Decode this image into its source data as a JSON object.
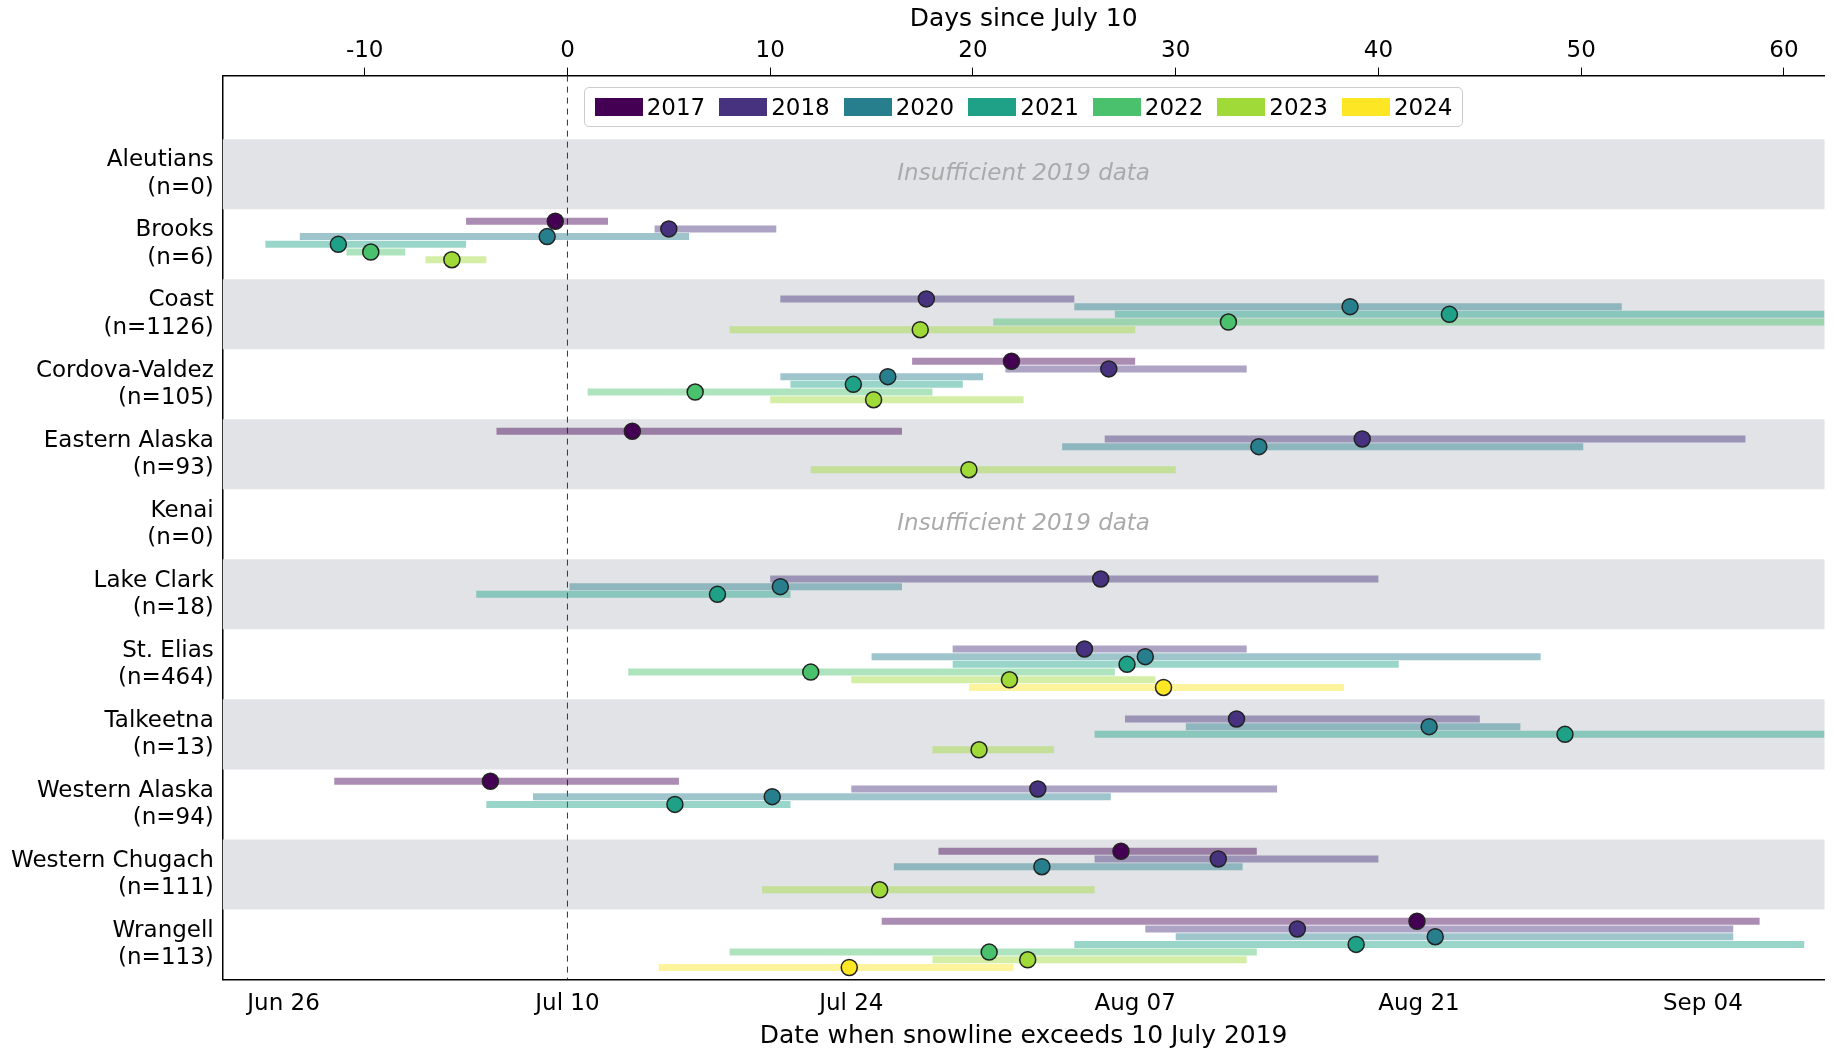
{
  "chart_data": {
    "type": "scatter",
    "orientation": "horizontal",
    "marker": "circle",
    "legend": "top",
    "grid": false,
    "xlabel": "Date when snowline exceeds 10 July 2019",
    "x2label": "Days since July 10",
    "categories": [
      "Aleutians\n(n=0)",
      "Brooks\n(n=6)",
      "Coast\n(n=1126)",
      "Cordova-Valdez\n(n=105)",
      "Eastern Alaska\n(n=93)",
      "Kenai\n(n=0)",
      "Lake Clark\n(n=18)",
      "St. Elias\n(n=464)",
      "Talkeetna\n(n=13)",
      "Western Alaska\n(n=94)",
      "Western Chugach\n(n=111)",
      "Wrangell\n(n=113)"
    ],
    "xlim": [
      "--06-23",
      "--09-10"
    ],
    "xticks": [
      {
        "value": "--06-26",
        "label": "Jun 26"
      },
      {
        "value": "--07-10",
        "label": "Jul 10"
      },
      {
        "value": "--07-24",
        "label": "Jul 24"
      },
      {
        "value": "--08-07",
        "label": "Aug 07"
      },
      {
        "value": "--08-21",
        "label": "Aug 21"
      },
      {
        "value": "--09-04",
        "label": "Sep 04"
      }
    ],
    "x2lim": [
      -17,
      62
    ],
    "x2ticks": [
      -10,
      0,
      10,
      20,
      30,
      40,
      50,
      60
    ],
    "ref_lines": [
      {
        "axis": "x2",
        "value": 0,
        "color": "#333333",
        "line_style": "dashed"
      }
    ],
    "annotations": [
      "Insufficient 2019 data",
      "Insufficient 2019 data"
    ],
    "series": [
      {
        "name": "2017",
        "axis": "x2",
        "color": "#440154",
        "values": [
          null,
          -0.6,
          null,
          21.9,
          3.2,
          null,
          null,
          null,
          null,
          -3.8,
          27.3,
          41.9
        ],
        "errors": [
          null,
          [
            -5,
            2
          ],
          null,
          [
            17,
            28
          ],
          [
            -3.5,
            16.5
          ],
          null,
          null,
          null,
          null,
          [
            -11.5,
            5.5
          ],
          [
            18.3,
            34
          ],
          [
            15.5,
            58.8
          ]
        ]
      },
      {
        "name": "2018",
        "axis": "x2",
        "color": "#46327e",
        "values": [
          null,
          5,
          17.7,
          26.7,
          39.2,
          null,
          26.3,
          25.5,
          33,
          23.2,
          32.1,
          36
        ],
        "errors": [
          null,
          [
            4.3,
            10.3
          ],
          [
            10.5,
            25
          ],
          [
            21.6,
            33.5
          ],
          [
            26.5,
            58.1
          ],
          null,
          [
            10,
            40
          ],
          [
            19,
            33.5
          ],
          [
            27.5,
            45
          ],
          [
            14,
            35
          ],
          [
            26,
            40
          ],
          [
            28.5,
            57.5
          ]
        ]
      },
      {
        "name": "2020",
        "axis": "x2",
        "color": "#277f8e",
        "values": [
          null,
          -1,
          38.6,
          15.8,
          34.1,
          null,
          10.5,
          28.5,
          42.5,
          10.1,
          23.4,
          42.8
        ],
        "errors": [
          null,
          [
            -13.2,
            6
          ],
          [
            25,
            52
          ],
          [
            10.5,
            20.5
          ],
          [
            24.4,
            50.1
          ],
          null,
          [
            0.1,
            16.5
          ],
          [
            15,
            48
          ],
          [
            30.5,
            47
          ],
          [
            -1.7,
            26.8
          ],
          [
            16.1,
            33.3
          ],
          [
            30,
            57.5
          ]
        ]
      },
      {
        "name": "2021",
        "axis": "x2",
        "color": "#1fa187",
        "values": [
          null,
          -11.3,
          43.5,
          14.1,
          null,
          null,
          7.4,
          27.6,
          49.2,
          5.3,
          null,
          38.9
        ],
        "errors": [
          null,
          [
            -14.9,
            -5
          ],
          [
            27,
            62
          ],
          [
            11,
            19.5
          ],
          null,
          null,
          [
            -4.5,
            11
          ],
          [
            19,
            41
          ],
          [
            26,
            62
          ],
          [
            -4,
            11
          ],
          null,
          [
            25,
            61
          ]
        ]
      },
      {
        "name": "2022",
        "axis": "x2",
        "color": "#4ac16d",
        "values": [
          null,
          -9.7,
          32.6,
          6.3,
          null,
          null,
          null,
          12,
          null,
          null,
          null,
          20.8
        ],
        "errors": [
          null,
          [
            -10.9,
            -8
          ],
          [
            21,
            62
          ],
          [
            1,
            18
          ],
          null,
          null,
          null,
          [
            3,
            27
          ],
          null,
          null,
          null,
          [
            8,
            34
          ]
        ]
      },
      {
        "name": "2023",
        "axis": "x2",
        "color": "#a0da39",
        "values": [
          null,
          -5.7,
          17.4,
          15.1,
          19.8,
          null,
          null,
          21.8,
          20.3,
          null,
          15.4,
          22.7
        ],
        "errors": [
          null,
          [
            -7,
            -4
          ],
          [
            8,
            28
          ],
          [
            10,
            22.5
          ],
          [
            12,
            30
          ],
          null,
          null,
          [
            14,
            29
          ],
          [
            18,
            24
          ],
          null,
          [
            9.6,
            26
          ],
          [
            18,
            33.5
          ]
        ]
      },
      {
        "name": "2024",
        "axis": "x2",
        "color": "#fde725",
        "values": [
          null,
          null,
          null,
          null,
          null,
          null,
          null,
          29.4,
          null,
          null,
          null,
          13.9
        ],
        "errors": [
          null,
          null,
          null,
          null,
          null,
          null,
          null,
          [
            19.8,
            38.3
          ],
          null,
          null,
          null,
          [
            4.5,
            22
          ]
        ]
      }
    ]
  }
}
